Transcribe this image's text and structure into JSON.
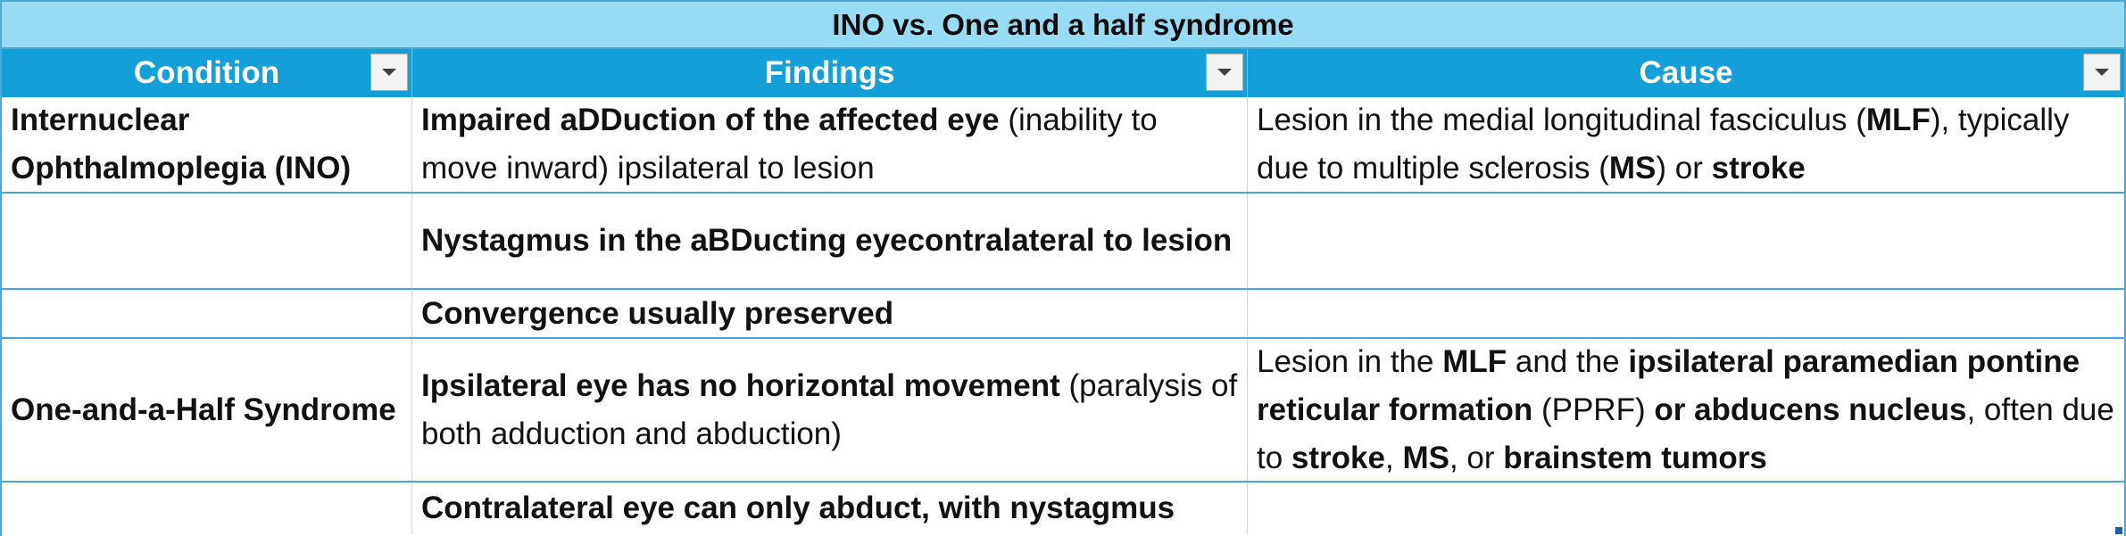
{
  "table": {
    "title": "INO vs. One and a half syndrome",
    "headers": {
      "condition": "Condition",
      "findings": "Findings",
      "cause": "Cause"
    },
    "filter_icon": "dropdown-triangle-icon",
    "rows": [
      {
        "condition": "Internuclear Ophthalmoplegia (INO)",
        "findings": {
          "bold": "Impaired aDDuction of the affected eye",
          "normal": " (inability to move inward) ipsilateral to lesion"
        },
        "cause": {
          "p1": "Lesion in the medial longitudinal fasciculus (",
          "b1": "MLF",
          "p2": "), typically due to multiple sclerosis (",
          "b2": "MS",
          "p3": ") or ",
          "b3": "stroke"
        }
      },
      {
        "condition": "",
        "findings": {
          "bold": "Nystagmus in the aBDucting eyecontralateral to lesion"
        },
        "cause": ""
      },
      {
        "condition": "",
        "findings": {
          "bold": "Convergence usually preserved"
        },
        "cause": ""
      },
      {
        "condition": "One-and-a-Half Syndrome",
        "findings": {
          "bold": "Ipsilateral eye has no horizontal movement",
          "normal": " (paralysis of both adduction and abduction)"
        },
        "cause": {
          "p1": "Lesion in the ",
          "b1": "MLF",
          "p2": " and the ",
          "b2": "ipsilateral paramedian pontine reticular formation",
          "p3": " (PPRF) ",
          "b3": "or abducens nucleus",
          "p4": ", often due to ",
          "b4": "stroke",
          "p5": ", ",
          "b5": "MS",
          "p6": ", or ",
          "b6": "brainstem tumors"
        }
      },
      {
        "condition": "",
        "findings": {
          "bold": "Contralateral eye can only abduct, with nystagmus"
        },
        "cause": ""
      }
    ]
  }
}
